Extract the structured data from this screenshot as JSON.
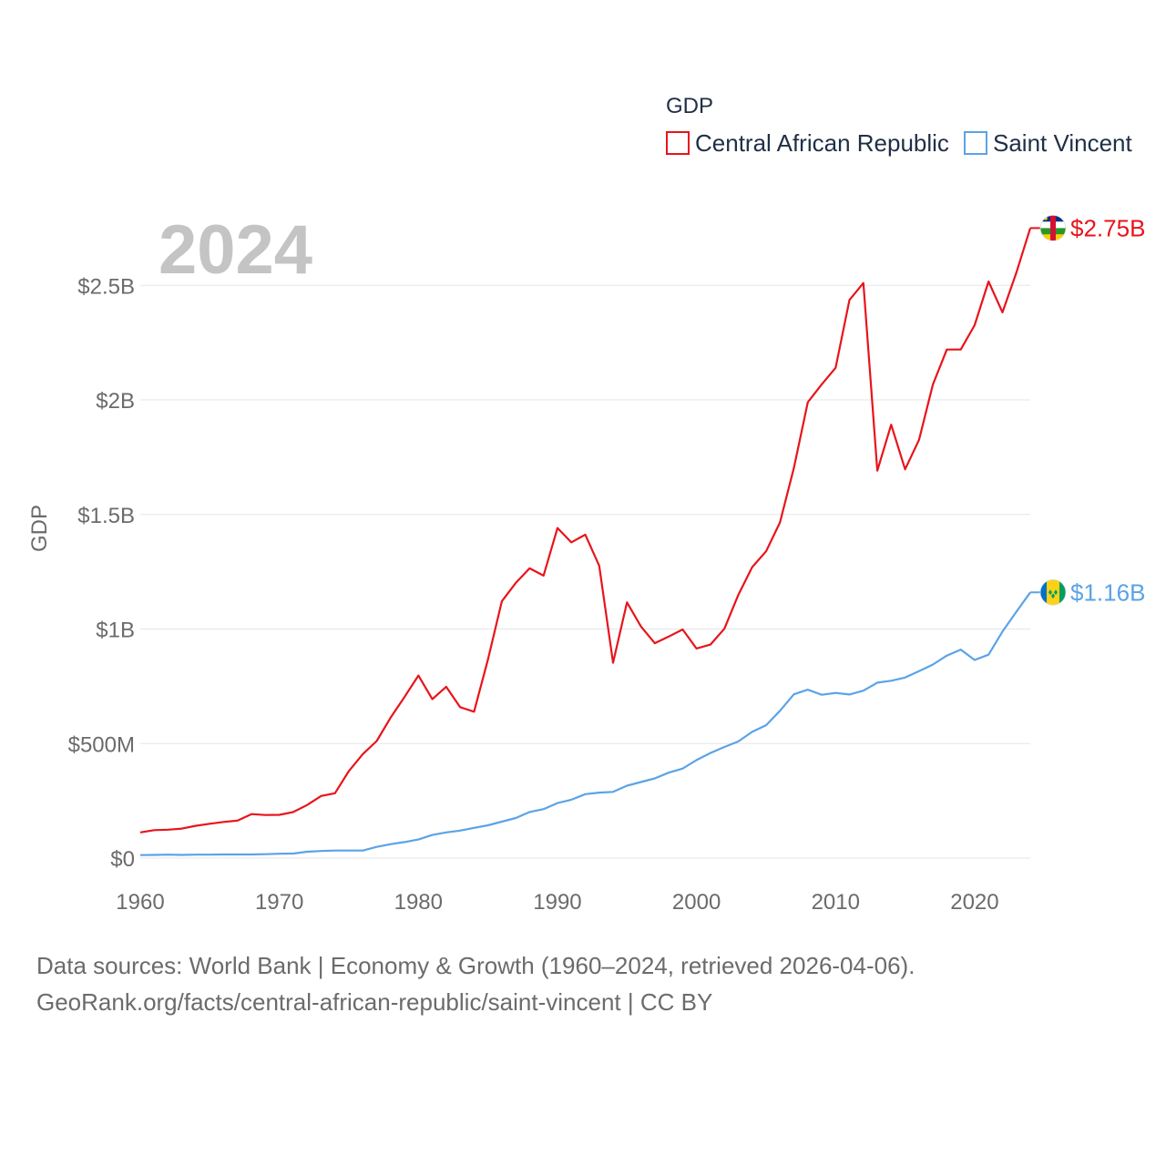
{
  "chart_data": {
    "type": "line",
    "ylabel": "GDP",
    "year_label": "2024",
    "legend": {
      "title": "GDP",
      "position": "top-right"
    },
    "xlim": [
      1960,
      2024
    ],
    "ylim": [
      0,
      2800000000
    ],
    "x_ticks": [
      1960,
      1970,
      1980,
      1990,
      2000,
      2010,
      2020
    ],
    "x_tick_labels": [
      "1960",
      "1970",
      "1980",
      "1990",
      "2000",
      "2010",
      "2020"
    ],
    "y_ticks": [
      0,
      500000000,
      1000000000,
      1500000000,
      2000000000,
      2500000000
    ],
    "y_tick_labels": [
      "$0",
      "$500M",
      "$1B",
      "$1.5B",
      "$2B",
      "$2.5B"
    ],
    "series": [
      {
        "name": "Central African Republic",
        "color": "#e8141b",
        "flag_icon": "central-african-republic-flag-icon",
        "end_label": "$2.75B",
        "x": [
          1960,
          1961,
          1962,
          1963,
          1964,
          1965,
          1966,
          1967,
          1968,
          1969,
          1970,
          1971,
          1972,
          1973,
          1974,
          1975,
          1976,
          1977,
          1978,
          1979,
          1980,
          1981,
          1982,
          1983,
          1984,
          1985,
          1986,
          1987,
          1988,
          1989,
          1990,
          1991,
          1992,
          1993,
          1994,
          1995,
          1996,
          1997,
          1998,
          1999,
          2000,
          2001,
          2002,
          2003,
          2004,
          2005,
          2006,
          2007,
          2008,
          2009,
          2010,
          2011,
          2012,
          2013,
          2014,
          2015,
          2016,
          2017,
          2018,
          2019,
          2020,
          2021,
          2022,
          2023,
          2024
        ],
        "values": [
          112000000,
          122000000,
          124000000,
          129000000,
          141000000,
          150000000,
          158000000,
          164000000,
          192000000,
          188000000,
          189000000,
          201000000,
          232000000,
          271000000,
          283000000,
          380000000,
          454000000,
          511000000,
          613000000,
          703000000,
          797000000,
          694000000,
          748000000,
          659000000,
          639000000,
          866000000,
          1121000000,
          1201000000,
          1265000000,
          1233000000,
          1441000000,
          1378000000,
          1412000000,
          1276000000,
          853000000,
          1116000000,
          1011000000,
          938000000,
          967000000,
          998000000,
          915000000,
          932000000,
          1001000000,
          1148000000,
          1270000000,
          1339000000,
          1465000000,
          1703000000,
          1990000000,
          2067000000,
          2140000000,
          2436000000,
          2510000000,
          1691000000,
          1892000000,
          1697000000,
          1826000000,
          2067000000,
          2220000000,
          2220000000,
          2326000000,
          2517000000,
          2382000000,
          2555000000,
          2750000000
        ]
      },
      {
        "name": "Saint Vincent",
        "color": "#5ba3e6",
        "flag_icon": "saint-vincent-flag-icon",
        "end_label": "$1.16B",
        "x": [
          1960,
          1961,
          1962,
          1963,
          1964,
          1965,
          1966,
          1967,
          1968,
          1969,
          1970,
          1971,
          1972,
          1973,
          1974,
          1975,
          1976,
          1977,
          1978,
          1979,
          1980,
          1981,
          1982,
          1983,
          1984,
          1985,
          1986,
          1987,
          1988,
          1989,
          1990,
          1991,
          1992,
          1993,
          1994,
          1995,
          1996,
          1997,
          1998,
          1999,
          2000,
          2001,
          2002,
          2003,
          2004,
          2005,
          2006,
          2007,
          2008,
          2009,
          2010,
          2011,
          2012,
          2013,
          2014,
          2015,
          2016,
          2017,
          2018,
          2019,
          2020,
          2021,
          2022,
          2023,
          2024
        ],
        "values": [
          13000000,
          14000000,
          15000000,
          14000000,
          15000000,
          15000000,
          16000000,
          16000000,
          16000000,
          17000000,
          19000000,
          20000000,
          28000000,
          31000000,
          33000000,
          33000000,
          33000000,
          49000000,
          61000000,
          70000000,
          81000000,
          101000000,
          112000000,
          120000000,
          132000000,
          143000000,
          159000000,
          175000000,
          201000000,
          214000000,
          240000000,
          255000000,
          279000000,
          286000000,
          289000000,
          316000000,
          332000000,
          348000000,
          373000000,
          391000000,
          428000000,
          459000000,
          485000000,
          509000000,
          551000000,
          580000000,
          643000000,
          715000000,
          735000000,
          713000000,
          721000000,
          714000000,
          731000000,
          766000000,
          774000000,
          788000000,
          816000000,
          845000000,
          884000000,
          910000000,
          865000000,
          888000000,
          989000000,
          1075000000,
          1160000000
        ]
      }
    ]
  },
  "footer": {
    "sources_line": "Data sources: World Bank | Economy & Growth (1960–2024, retrieved 2026-04-06).",
    "url_line": "GeoRank.org/facts/central-african-republic/saint-vincent | CC BY"
  }
}
